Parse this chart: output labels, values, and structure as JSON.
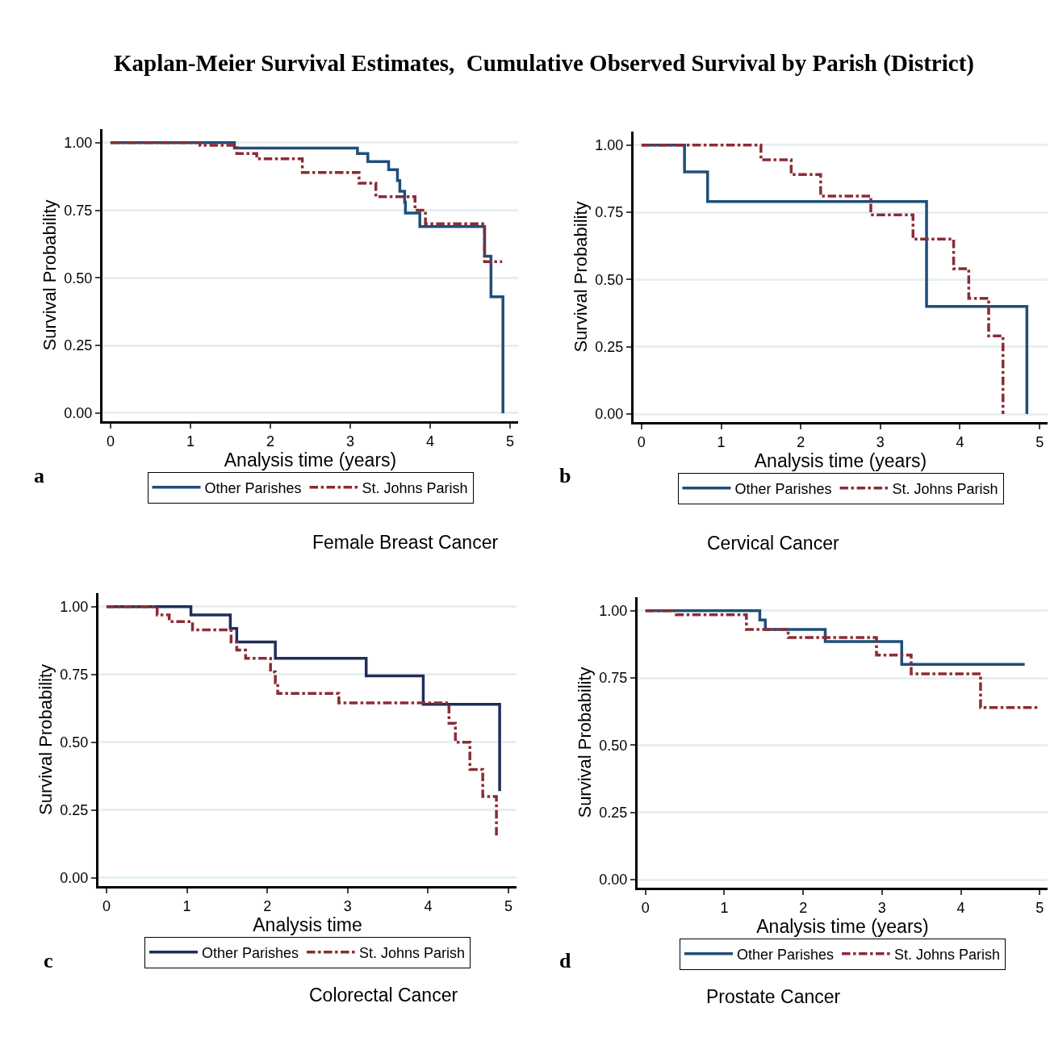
{
  "chart_data": [
    {
      "type": "step",
      "title": "Female Breast Cancer",
      "xlabel": "Analysis time (years)",
      "ylabel": "Survival Probability",
      "annotations": [
        "Kaplan-Meier Survival Estimates,  Cumulative Observed Survival by Parish (District)",
        "a"
      ],
      "xlim": [
        -0.1,
        5.1
      ],
      "ylim": [
        -0.03,
        1.05
      ],
      "xticks": [
        0,
        1,
        2,
        3,
        4,
        5
      ],
      "yticks": [
        {
          "value": 0,
          "label": "0.00"
        },
        {
          "value": 0.25,
          "label": "0.25"
        },
        {
          "value": 0.5,
          "label": "0.50"
        },
        {
          "value": 0.75,
          "label": "0.75"
        },
        {
          "value": 1,
          "label": "1.00"
        }
      ],
      "grid": "y",
      "legend": "bottom",
      "series": [
        {
          "name": "Other Parishes",
          "color": "#1f4e79",
          "line_style": "solid",
          "x": [
            0,
            1.55,
            3.09,
            3.22,
            3.48,
            3.59,
            3.62,
            3.68,
            3.69,
            3.87,
            4.68,
            4.76,
            4.91
          ],
          "values": [
            1,
            0.98,
            0.96,
            0.93,
            0.9,
            0.86,
            0.82,
            0.78,
            0.74,
            0.69,
            0.58,
            0.43,
            0
          ]
        },
        {
          "name": "St. Johns Parish",
          "color": "#8b2c36",
          "line_style": "dash-dot",
          "x": [
            0,
            1.12,
            1.58,
            1.83,
            2.4,
            3.11,
            3.32,
            3.81,
            3.94,
            4.68,
            4.9
          ],
          "values": [
            1,
            0.99,
            0.96,
            0.94,
            0.89,
            0.85,
            0.8,
            0.75,
            0.7,
            0.56,
            0.56
          ]
        }
      ]
    },
    {
      "type": "step",
      "title": "Cervical Cancer",
      "xlabel": "Analysis time (years)",
      "ylabel": "Survival Probability",
      "annotations": [
        "b"
      ],
      "xlim": [
        -0.1,
        5.1
      ],
      "ylim": [
        -0.03,
        1.05
      ],
      "xticks": [
        0,
        1,
        2,
        3,
        4,
        5
      ],
      "yticks": [
        {
          "value": 0,
          "label": "0.00"
        },
        {
          "value": 0.25,
          "label": "0.25"
        },
        {
          "value": 0.5,
          "label": "0.50"
        },
        {
          "value": 0.75,
          "label": "0.75"
        },
        {
          "value": 1,
          "label": "1.00"
        }
      ],
      "grid": "y",
      "legend": "bottom",
      "series": [
        {
          "name": "Other Parishes",
          "color": "#1f4e79",
          "line_style": "solid",
          "x": [
            0,
            0.54,
            0.83,
            3.58,
            4.84
          ],
          "values": [
            1,
            0.9,
            0.79,
            0.4,
            0
          ]
        },
        {
          "name": "St. Johns Parish",
          "color": "#8b2c36",
          "line_style": "dash-dot",
          "x": [
            0,
            1.5,
            1.88,
            2.25,
            2.88,
            3.41,
            3.92,
            4.11,
            4.36,
            4.54
          ],
          "values": [
            1,
            0.945,
            0.89,
            0.81,
            0.74,
            0.65,
            0.54,
            0.43,
            0.29,
            0
          ]
        }
      ]
    },
    {
      "type": "step",
      "title": "Colorectal Cancer",
      "xlabel": "Analysis time",
      "ylabel": "Survival Probability",
      "annotations": [
        "c"
      ],
      "xlim": [
        -0.1,
        5.1
      ],
      "ylim": [
        -0.03,
        1.05
      ],
      "xticks": [
        0,
        1,
        2,
        3,
        4,
        5
      ],
      "yticks": [
        {
          "value": 0,
          "label": "0.00"
        },
        {
          "value": 0.25,
          "label": "0.25"
        },
        {
          "value": 0.5,
          "label": "0.50"
        },
        {
          "value": 0.75,
          "label": "0.75"
        },
        {
          "value": 1,
          "label": "1.00"
        }
      ],
      "grid": "y",
      "legend": "bottom",
      "series": [
        {
          "name": "Other Parishes",
          "color": "#1f2d5a",
          "line_style": "solid",
          "x": [
            0,
            1.05,
            1.54,
            1.62,
            2.1,
            3.23,
            3.94,
            4.89
          ],
          "values": [
            1,
            0.97,
            0.92,
            0.87,
            0.81,
            0.745,
            0.64,
            0.32
          ]
        },
        {
          "name": "St. Johns Parish",
          "color": "#8b2c36",
          "line_style": "dash-dot",
          "x": [
            0,
            0.63,
            0.78,
            1.07,
            1.55,
            1.62,
            1.73,
            2.04,
            2.1,
            2.13,
            2.89,
            4.26,
            4.34,
            4.52,
            4.68,
            4.85
          ],
          "values": [
            1,
            0.97,
            0.945,
            0.915,
            0.87,
            0.84,
            0.81,
            0.76,
            0.72,
            0.68,
            0.645,
            0.57,
            0.5,
            0.4,
            0.3,
            0.15
          ]
        }
      ]
    },
    {
      "type": "step",
      "title": "Prostate Cancer",
      "xlabel": "Analysis time (years)",
      "ylabel": "Survival Probability",
      "annotations": [
        "d"
      ],
      "xlim": [
        -0.1,
        5.1
      ],
      "ylim": [
        -0.03,
        1.05
      ],
      "xticks": [
        0,
        1,
        2,
        3,
        4,
        5
      ],
      "yticks": [
        {
          "value": 0,
          "label": "0.00"
        },
        {
          "value": 0.25,
          "label": "0.25"
        },
        {
          "value": 0.5,
          "label": "0.50"
        },
        {
          "value": 0.75,
          "label": "0.75"
        },
        {
          "value": 1,
          "label": "1.00"
        }
      ],
      "grid": "y",
      "legend": "bottom",
      "series": [
        {
          "name": "Other Parishes",
          "color": "#1f4e79",
          "line_style": "solid",
          "x": [
            0,
            1.45,
            1.52,
            2.28,
            3.25,
            4.81
          ],
          "values": [
            1,
            0.965,
            0.93,
            0.885,
            0.8,
            0.8
          ]
        },
        {
          "name": "St. Johns Parish",
          "color": "#8b2c36",
          "line_style": "dash-dot",
          "x": [
            0,
            0.39,
            1.28,
            1.81,
            2.93,
            3.37,
            4.25,
            5.0
          ],
          "values": [
            1,
            0.985,
            0.93,
            0.9,
            0.835,
            0.765,
            0.64,
            0.64
          ]
        }
      ]
    }
  ]
}
